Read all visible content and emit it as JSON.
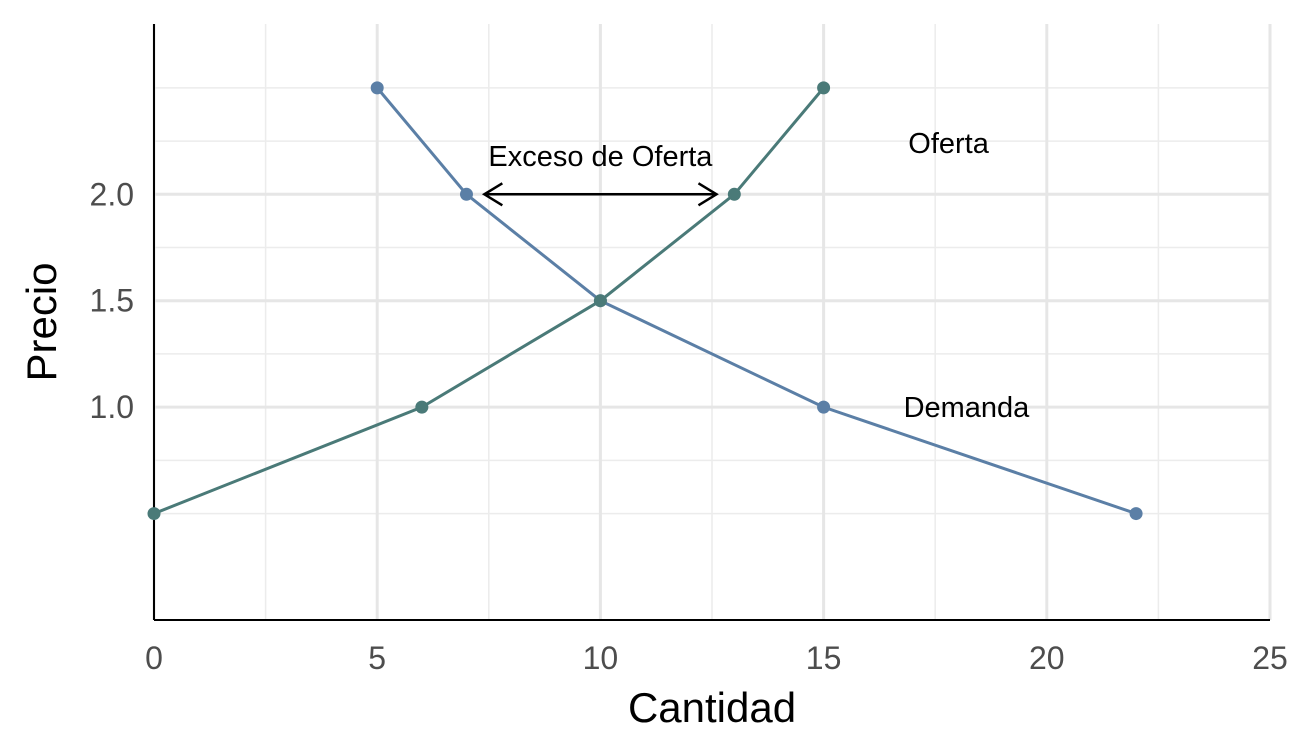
{
  "chart_data": {
    "type": "line",
    "title": "",
    "xlabel": "Cantidad",
    "ylabel": "Precio",
    "xlim": [
      0,
      25
    ],
    "ylim": [
      0.0,
      2.8
    ],
    "x_ticks": [
      0,
      5,
      10,
      15,
      20,
      25
    ],
    "x_tick_labels": [
      "0",
      "5",
      "10",
      "15",
      "20",
      "25"
    ],
    "y_ticks": [
      1.0,
      1.5,
      2.0
    ],
    "y_tick_labels": [
      "1.0",
      "1.5",
      "2.0"
    ],
    "x_minor_grid": [
      2.5,
      7.5,
      12.5,
      17.5,
      22.5
    ],
    "y_minor_grid": [
      0.5,
      0.75,
      1.25,
      1.75,
      2.25,
      2.5
    ],
    "grid": true,
    "series": [
      {
        "name": "Demanda",
        "color": "#5b7fa6",
        "points": [
          [
            5,
            2.5
          ],
          [
            7,
            2.0
          ],
          [
            10,
            1.5
          ],
          [
            15,
            1.0
          ],
          [
            22,
            0.5
          ]
        ]
      },
      {
        "name": "Oferta",
        "color": "#4a7a78",
        "points": [
          [
            0,
            0.5
          ],
          [
            6,
            1.0
          ],
          [
            10,
            1.5
          ],
          [
            13,
            2.0
          ],
          [
            15,
            2.5
          ]
        ]
      }
    ],
    "annotations": [
      {
        "text": "Oferta",
        "x": 17.8,
        "y": 2.24,
        "anchor": "middle"
      },
      {
        "text": "Demanda",
        "x": 18.2,
        "y": 1.0,
        "anchor": "middle"
      },
      {
        "text": "Exceso de Oferta",
        "x": 10.0,
        "y": 2.18,
        "anchor": "middle"
      }
    ],
    "arrow": {
      "from": [
        7.4,
        2.0
      ],
      "to": [
        12.6,
        2.0
      ],
      "double_headed": true
    }
  }
}
